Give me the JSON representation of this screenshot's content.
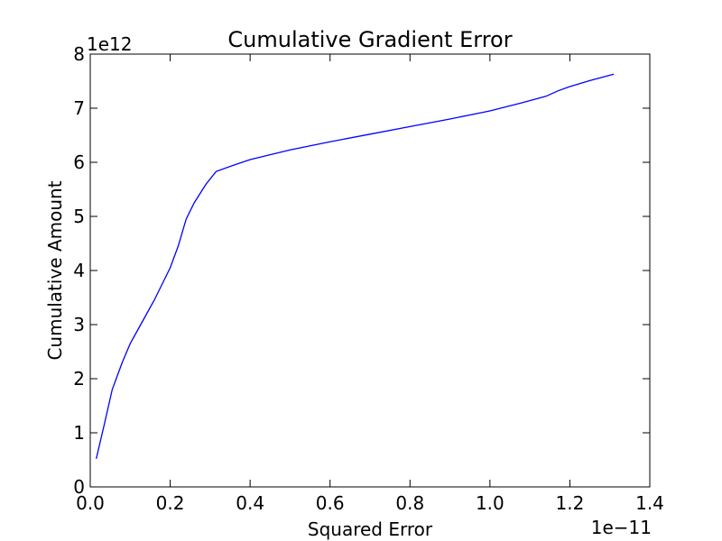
{
  "chart_data": {
    "type": "line",
    "title": "Cumulative Gradient Error",
    "xlabel": "Squared Error",
    "ylabel": "Cumulative Amount",
    "x_offset_label": "1e−11",
    "y_offset_label": "1e12",
    "xlim": [
      0.0,
      1.4
    ],
    "ylim": [
      0,
      8
    ],
    "xticks": [
      0.0,
      0.2,
      0.4,
      0.6,
      0.8,
      1.0,
      1.2,
      1.4
    ],
    "xtick_labels": [
      "0.0",
      "0.2",
      "0.4",
      "0.6",
      "0.8",
      "1.0",
      "1.2",
      "1.4"
    ],
    "yticks": [
      0,
      1,
      2,
      3,
      4,
      5,
      6,
      7,
      8
    ],
    "ytick_labels": [
      "0",
      "1",
      "2",
      "3",
      "4",
      "5",
      "6",
      "7",
      "8"
    ],
    "grid": false,
    "line_color": "#0000ff",
    "series": [
      {
        "x": [
          0.015,
          0.035,
          0.055,
          0.08,
          0.1,
          0.13,
          0.16,
          0.2,
          0.22,
          0.24,
          0.26,
          0.29,
          0.315,
          0.36,
          0.4,
          0.5,
          0.6,
          0.7,
          0.8,
          0.9,
          1.0,
          1.08,
          1.14,
          1.17,
          1.2,
          1.25,
          1.31
        ],
        "y": [
          0.52,
          1.15,
          1.8,
          2.3,
          2.65,
          3.05,
          3.45,
          4.05,
          4.45,
          4.95,
          5.25,
          5.6,
          5.83,
          5.95,
          6.05,
          6.23,
          6.38,
          6.52,
          6.66,
          6.8,
          6.95,
          7.1,
          7.22,
          7.32,
          7.4,
          7.51,
          7.63
        ]
      }
    ]
  }
}
